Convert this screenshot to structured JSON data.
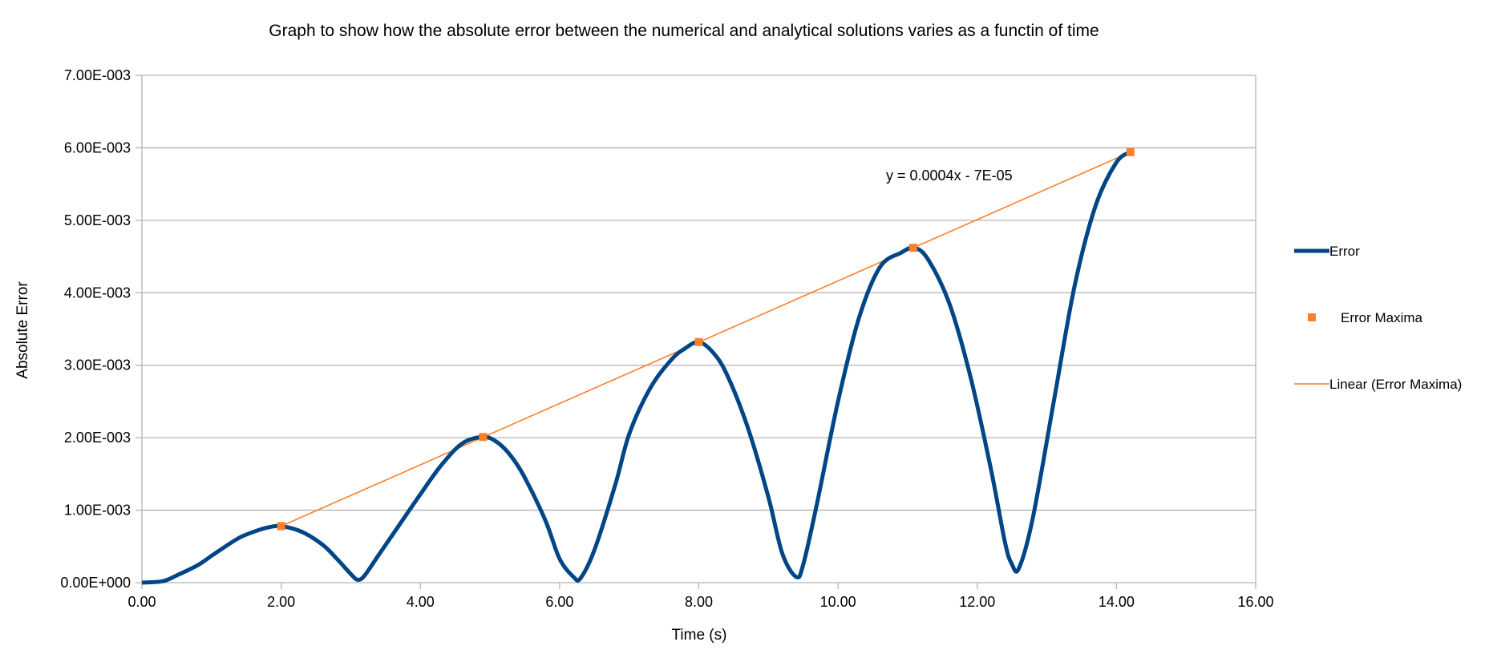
{
  "chart_data": {
    "type": "line",
    "title": "Graph to show how the absolute error between the numerical and analytical solutions varies as a functin of time",
    "xlabel": "Time (s)",
    "ylabel": "Absolute Error",
    "xlim": [
      0,
      16
    ],
    "ylim": [
      0,
      0.007
    ],
    "x_ticks": [
      0,
      2,
      4,
      6,
      8,
      10,
      12,
      14,
      16
    ],
    "x_tick_labels": [
      "0.00",
      "2.00",
      "4.00",
      "6.00",
      "8.00",
      "10.00",
      "12.00",
      "14.00",
      "16.00"
    ],
    "y_ticks": [
      0,
      0.001,
      0.002,
      0.003,
      0.004,
      0.005,
      0.006,
      0.007
    ],
    "y_tick_labels": [
      "0.00E+000",
      "1.00E-003",
      "2.00E-003",
      "3.00E-003",
      "4.00E-003",
      "5.00E-003",
      "6.00E-003",
      "7.00E-003"
    ],
    "grid": "horizontal",
    "legend_position": "right",
    "series": [
      {
        "name": "Error",
        "kind": "line",
        "color": "#004586",
        "x": [
          0,
          0.3,
          0.5,
          0.8,
          1.0,
          1.2,
          1.4,
          1.6,
          1.8,
          2.0,
          2.3,
          2.6,
          2.8,
          3.0,
          3.1,
          3.2,
          3.4,
          3.7,
          4.0,
          4.3,
          4.6,
          4.9,
          5.1,
          5.3,
          5.5,
          5.8,
          6.0,
          6.2,
          6.3,
          6.5,
          6.8,
          7.0,
          7.3,
          7.6,
          7.8,
          8.0,
          8.2,
          8.4,
          8.7,
          9.0,
          9.2,
          9.4,
          9.5,
          9.7,
          10.0,
          10.3,
          10.6,
          10.9,
          11.1,
          11.3,
          11.6,
          11.9,
          12.2,
          12.4,
          12.5,
          12.6,
          12.8,
          13.1,
          13.4,
          13.7,
          14.0,
          14.2
        ],
        "y": [
          0,
          2e-05,
          0.0001,
          0.00024,
          0.00037,
          0.0005,
          0.00062,
          0.0007,
          0.00076,
          0.00078,
          0.0007,
          0.00052,
          0.00033,
          0.00012,
          4e-05,
          0.0001,
          0.00038,
          0.0008,
          0.00122,
          0.00162,
          0.00192,
          0.00201,
          0.00194,
          0.00175,
          0.00145,
          0.00085,
          0.00033,
          8e-05,
          6e-05,
          0.00045,
          0.00135,
          0.00205,
          0.00268,
          0.00307,
          0.00323,
          0.00332,
          0.00318,
          0.00288,
          0.00215,
          0.00118,
          0.0004,
          8e-05,
          0.00025,
          0.0011,
          0.0025,
          0.00365,
          0.00435,
          0.00455,
          0.00462,
          0.00445,
          0.00385,
          0.00285,
          0.00155,
          0.00055,
          0.00025,
          0.0002,
          0.0009,
          0.0025,
          0.0041,
          0.0052,
          0.0058,
          0.00594
        ]
      },
      {
        "name": "Error Maxima",
        "kind": "scatter",
        "color": "#ff7f2a",
        "x": [
          2.0,
          4.9,
          8.0,
          11.08,
          14.2
        ],
        "y": [
          0.00078,
          0.00201,
          0.00332,
          0.00462,
          0.00594
        ]
      },
      {
        "name": "Linear  (Error Maxima)",
        "kind": "trendline",
        "color": "#ff7f2a",
        "x": [
          2.0,
          14.2
        ],
        "y": [
          0.00078,
          0.00594
        ]
      }
    ],
    "annotation": "y = 0.0004x - 7E-05"
  }
}
